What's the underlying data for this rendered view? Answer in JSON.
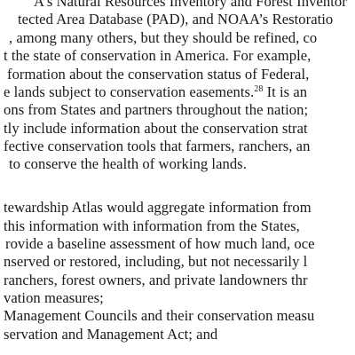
{
  "paragraph_1": {
    "lines": [
      "A’s Natural Resources Inventory and Forest Inventor",
      "tected Area Database (PAD), and NOAA’s Restoratio",
      ", among many others, but they should be refined, co",
      "t the state of conservation in America. For example,",
      "formation about the conservation status of Federal,",
      "e lands subject to conservation easements.",
      "ons from States and partners throughout the nation;",
      "tly include information about the conservation strat",
      "fective conservation tools that farmers, ranchers, an",
      "to conserve the health of working lands."
    ],
    "line_6_tail": " It is an",
    "footnote_ref": "28"
  },
  "paragraph_2": {
    "lines": [
      "tewardship Atlas would aggregate information from",
      " this information with information from the States, ",
      "rovide a baseline assessment of how much land, oce",
      "nserved or restored, including, but not necessarily l",
      "ranchers, forest owners, and private landowners thr",
      "vation measures;",
      "Management Councils and their conservation measu",
      "servation and Management Act; and"
    ]
  }
}
